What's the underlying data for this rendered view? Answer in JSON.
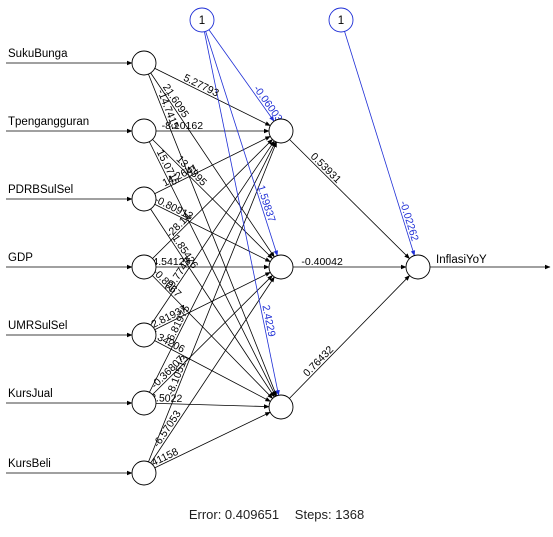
{
  "network": {
    "inputs": [
      "SukuBunga",
      "Tpengangguran",
      "PDRBSulSel",
      "GDP",
      "UMRSulSel",
      "KursJual",
      "KursBeli"
    ],
    "hidden_count": 3,
    "output": "InflasiYoY",
    "bias_label": "1",
    "input_to_hidden_labels": [
      {
        "from": 0,
        "to": 0,
        "text": "5.27793"
      },
      {
        "from": 0,
        "to": 1,
        "text": "21.6095"
      },
      {
        "from": 0,
        "to": 2,
        "text": "-14.7415"
      },
      {
        "from": 1,
        "to": 0,
        "text": "-8.10162"
      },
      {
        "from": 1,
        "to": 1,
        "text": "13.6895"
      },
      {
        "from": 1,
        "to": 2,
        "text": "15.0715"
      },
      {
        "from": 2,
        "to": 0,
        "text": "14.2641"
      },
      {
        "from": 2,
        "to": 1,
        "text": "-0.80913"
      },
      {
        "from": 2,
        "to": 2,
        "text": "-1.85426"
      },
      {
        "from": 3,
        "to": 0,
        "text": "-28.14"
      },
      {
        "from": 3,
        "to": 1,
        "text": "4.54127"
      },
      {
        "from": 3,
        "to": 2,
        "text": "-0.8067"
      },
      {
        "from": 4,
        "to": 0,
        "text": "29.7743"
      },
      {
        "from": 4,
        "to": 1,
        "text": "2.81937"
      },
      {
        "from": 4,
        "to": 2,
        "text": "-5.34206"
      },
      {
        "from": 5,
        "to": 0,
        "text": "-6.81975"
      },
      {
        "from": 5,
        "to": 1,
        "text": "-0.36807"
      },
      {
        "from": 5,
        "to": 2,
        "text": "12.5022"
      },
      {
        "from": 6,
        "to": 0,
        "text": "-8.10513"
      },
      {
        "from": 6,
        "to": 1,
        "text": "-6.57053"
      },
      {
        "from": 6,
        "to": 2,
        "text": "0.41158"
      }
    ],
    "hidden_bias_labels": [
      "-0.06003",
      "1.59837",
      "2.4229"
    ],
    "hidden_to_output_labels": [
      "0.53931",
      "-0.40042",
      "0.76432"
    ],
    "output_bias_label": "-0.02262"
  },
  "footer": {
    "error": "Error: 0.409651",
    "steps": "Steps: 1368"
  },
  "colors": {
    "weights": "#000000",
    "bias": "#1f2fd6"
  }
}
